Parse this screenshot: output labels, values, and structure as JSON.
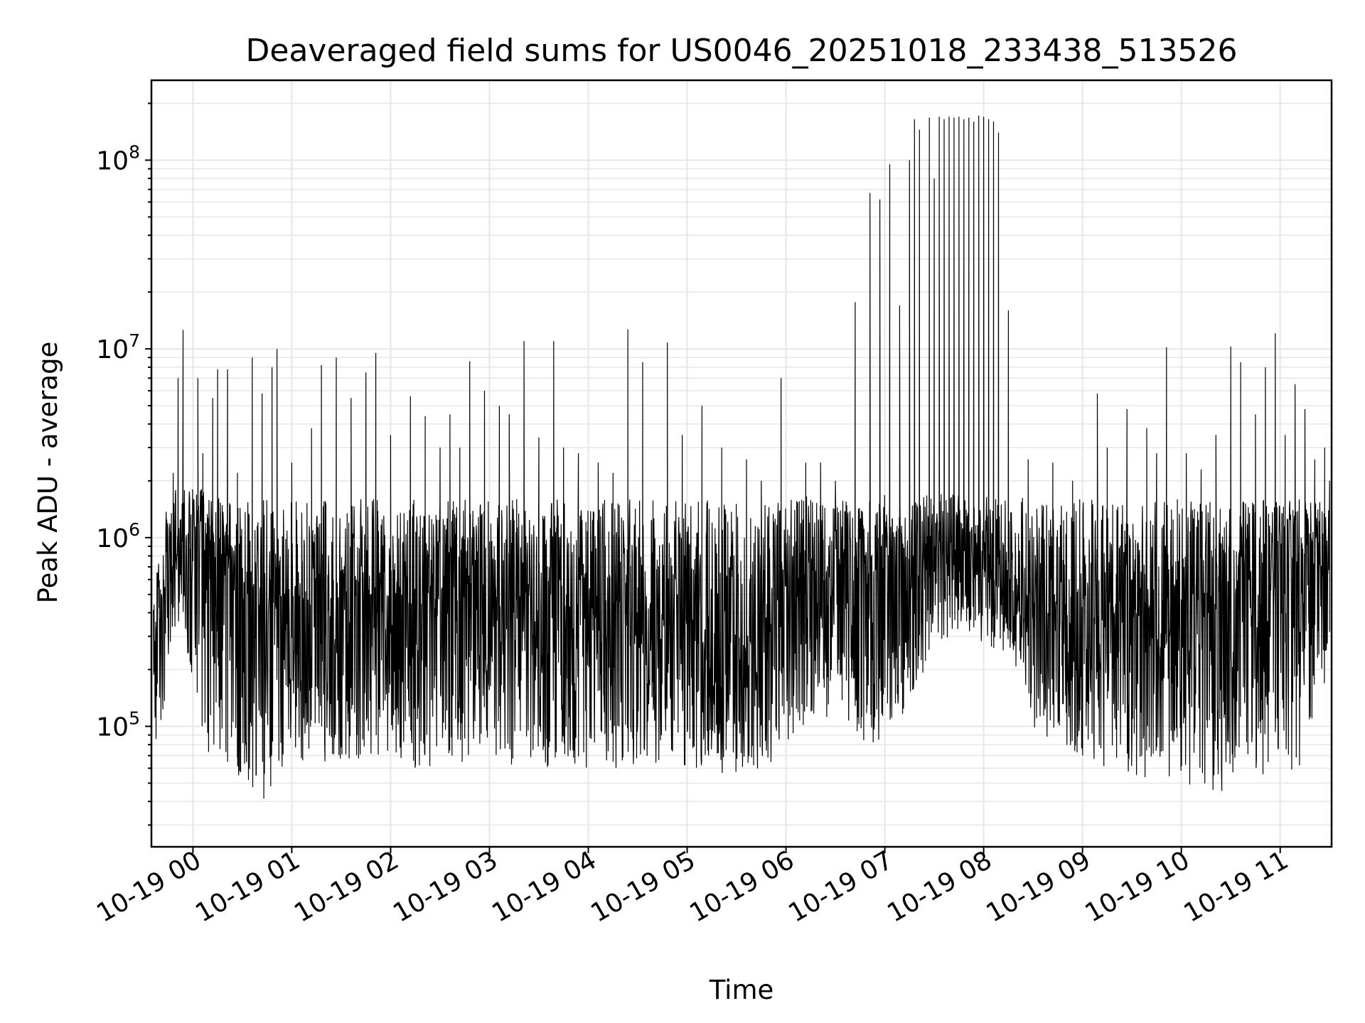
{
  "chart_data": {
    "type": "line",
    "title": "Deaveraged field sums for US0046_20251018_233438_513526",
    "xlabel": "Time",
    "ylabel": "Peak ADU - average",
    "yscale": "log",
    "grid": true,
    "line_color": "#000000",
    "grid_color": "#e6e6e6",
    "x_ticks": [
      "10-19 00",
      "10-19 01",
      "10-19 02",
      "10-19 03",
      "10-19 04",
      "10-19 05",
      "10-19 06",
      "10-19 07",
      "10-19 08",
      "10-19 09",
      "10-19 10",
      "10-19 11"
    ],
    "y_ticks": [
      {
        "base": "10",
        "exp": "5",
        "value": 100000
      },
      {
        "base": "10",
        "exp": "6",
        "value": 1000000
      },
      {
        "base": "10",
        "exp": "7",
        "value": 10000000
      },
      {
        "base": "10",
        "exp": "8",
        "value": 100000000
      }
    ],
    "xlim_hours": [
      -0.42,
      11.52
    ],
    "ylim": [
      23000,
      265000000
    ],
    "series": [
      {
        "x_hours": [
          -0.4,
          -0.35,
          -0.3,
          -0.25,
          -0.2,
          -0.15,
          -0.1,
          0.0,
          0.1,
          0.2,
          0.3,
          0.4,
          0.5,
          0.6,
          0.7,
          0.8,
          0.9,
          1.0,
          1.25,
          1.5,
          1.75,
          2.0,
          2.25,
          2.5,
          2.75,
          3.0,
          3.25,
          3.5,
          3.75,
          4.0,
          4.25,
          4.5,
          4.75,
          5.0,
          5.25,
          5.5,
          5.75,
          5.9,
          6.0,
          6.1,
          6.2,
          6.3,
          6.4,
          6.5,
          6.6,
          6.7,
          6.8,
          6.9,
          7.0,
          7.1,
          7.2,
          7.3,
          7.4,
          7.5,
          7.6,
          7.7,
          7.8,
          7.9,
          8.0,
          8.1,
          8.2,
          8.3,
          8.5,
          8.75,
          9.0,
          9.25,
          9.5,
          9.75,
          10.0,
          10.25,
          10.5,
          10.75,
          11.0,
          11.25,
          11.4,
          11.5
        ],
        "y_median": [
          250000,
          350000,
          500000,
          700000,
          850000,
          900000,
          950000,
          1000000,
          1100000,
          900000,
          800000,
          600000,
          500000,
          450000,
          420000,
          400000,
          420000,
          450000,
          450000,
          430000,
          460000,
          480000,
          460000,
          450000,
          470000,
          480000,
          450000,
          420000,
          400000,
          420000,
          410000,
          380000,
          350000,
          330000,
          300000,
          280000,
          250000,
          240000,
          450000,
          500000,
          550000,
          600000,
          650000,
          700000,
          750000,
          700000,
          650000,
          700000,
          750000,
          800000,
          850000,
          880000,
          900000,
          900000,
          880000,
          850000,
          800000,
          750000,
          700000,
          650000,
          600000,
          550000,
          400000,
          380000,
          400000,
          420000,
          430000,
          440000,
          450000,
          460000,
          450000,
          460000,
          700000,
          800000,
          900000,
          500000
        ],
        "y_low": [
          70000,
          80000,
          110000,
          200000,
          300000,
          350000,
          250000,
          150000,
          80000,
          60000,
          55000,
          55000,
          50000,
          45000,
          40000,
          45000,
          55000,
          60000,
          65000,
          60000,
          70000,
          70000,
          60000,
          60000,
          65000,
          65000,
          60000,
          60000,
          60000,
          60000,
          60000,
          60000,
          60000,
          55000,
          55000,
          55000,
          60000,
          65000,
          80000,
          90000,
          100000,
          100000,
          100000,
          100000,
          90000,
          80000,
          70000,
          80000,
          90000,
          100000,
          120000,
          150000,
          200000,
          250000,
          280000,
          300000,
          300000,
          290000,
          280000,
          260000,
          250000,
          230000,
          100000,
          80000,
          70000,
          60000,
          55000,
          50000,
          45000,
          45000,
          45000,
          50000,
          55000,
          60000,
          200000,
          100000
        ],
        "y_high": [
          450000,
          800000,
          1300000,
          1600000,
          1800000,
          1900000,
          1900000,
          1900000,
          1800000,
          1700000,
          1600000,
          1600000,
          1600000,
          1600000,
          1600000,
          1600000,
          1600000,
          1600000,
          1600000,
          1600000,
          1600000,
          1600000,
          1600000,
          1600000,
          1600000,
          1600000,
          1600000,
          1600000,
          1600000,
          1600000,
          1600000,
          1600000,
          1600000,
          1600000,
          1600000,
          1600000,
          1600000,
          1600000,
          1600000,
          1600000,
          1700000,
          1700000,
          1700000,
          1700000,
          1700000,
          1700000,
          1700000,
          1700000,
          1700000,
          1700000,
          1700000,
          1700000,
          1700000,
          1700000,
          1700000,
          1700000,
          1700000,
          1700000,
          1700000,
          1700000,
          1700000,
          1700000,
          1600000,
          1600000,
          1600000,
          1600000,
          1600000,
          1600000,
          1600000,
          1600000,
          1600000,
          1600000,
          1600000,
          1600000,
          1600000,
          1600000
        ],
        "spikes": [
          [
            -0.2,
            2200000
          ],
          [
            -0.15,
            7000000
          ],
          [
            -0.1,
            12600000
          ],
          [
            0.05,
            7000000
          ],
          [
            0.1,
            2800000
          ],
          [
            0.2,
            5500000
          ],
          [
            0.25,
            7800000
          ],
          [
            0.35,
            7800000
          ],
          [
            0.45,
            2200000
          ],
          [
            0.6,
            9000000
          ],
          [
            0.7,
            5800000
          ],
          [
            0.8,
            8000000
          ],
          [
            0.85,
            10000000
          ],
          [
            1.0,
            2500000
          ],
          [
            1.2,
            3800000
          ],
          [
            1.3,
            8200000
          ],
          [
            1.45,
            9000000
          ],
          [
            1.6,
            5500000
          ],
          [
            1.75,
            7500000
          ],
          [
            1.85,
            9500000
          ],
          [
            2.0,
            3500000
          ],
          [
            2.2,
            5600000
          ],
          [
            2.35,
            4400000
          ],
          [
            2.5,
            3000000
          ],
          [
            2.6,
            4500000
          ],
          [
            2.7,
            3000000
          ],
          [
            2.8,
            8600000
          ],
          [
            2.95,
            6000000
          ],
          [
            3.1,
            5000000
          ],
          [
            3.2,
            4500000
          ],
          [
            3.35,
            11000000
          ],
          [
            3.5,
            3400000
          ],
          [
            3.65,
            11000000
          ],
          [
            3.75,
            3000000
          ],
          [
            3.9,
            2800000
          ],
          [
            4.1,
            2500000
          ],
          [
            4.25,
            2200000
          ],
          [
            4.4,
            12700000
          ],
          [
            4.55,
            8500000
          ],
          [
            4.8,
            10800000
          ],
          [
            4.95,
            3500000
          ],
          [
            5.15,
            5000000
          ],
          [
            5.35,
            3000000
          ],
          [
            5.6,
            2600000
          ],
          [
            5.75,
            2000000
          ],
          [
            5.95,
            7000000
          ],
          [
            6.2,
            2500000
          ],
          [
            6.35,
            2500000
          ],
          [
            6.5,
            2000000
          ],
          [
            6.7,
            17700000
          ],
          [
            6.85,
            67000000
          ],
          [
            6.95,
            62000000
          ],
          [
            7.05,
            95000000
          ],
          [
            7.15,
            17000000
          ],
          [
            7.25,
            100000000
          ],
          [
            7.3,
            165000000
          ],
          [
            7.35,
            145000000
          ],
          [
            7.45,
            168000000
          ],
          [
            7.5,
            80000000
          ],
          [
            7.55,
            170000000
          ],
          [
            7.6,
            165000000
          ],
          [
            7.65,
            170000000
          ],
          [
            7.7,
            168000000
          ],
          [
            7.75,
            170000000
          ],
          [
            7.8,
            165000000
          ],
          [
            7.85,
            168000000
          ],
          [
            7.9,
            160000000
          ],
          [
            7.95,
            172000000
          ],
          [
            8.0,
            170000000
          ],
          [
            8.05,
            165000000
          ],
          [
            8.1,
            160000000
          ],
          [
            8.15,
            140000000
          ],
          [
            8.25,
            16000000
          ],
          [
            8.45,
            2600000
          ],
          [
            8.7,
            2500000
          ],
          [
            8.9,
            2000000
          ],
          [
            9.15,
            5800000
          ],
          [
            9.25,
            3000000
          ],
          [
            9.45,
            4800000
          ],
          [
            9.65,
            3800000
          ],
          [
            9.75,
            2800000
          ],
          [
            9.85,
            10200000
          ],
          [
            10.05,
            2800000
          ],
          [
            10.2,
            2300000
          ],
          [
            10.35,
            3500000
          ],
          [
            10.5,
            10300000
          ],
          [
            10.6,
            8500000
          ],
          [
            10.75,
            4500000
          ],
          [
            10.85,
            8000000
          ],
          [
            10.95,
            12100000
          ],
          [
            11.05,
            3500000
          ],
          [
            11.15,
            6500000
          ],
          [
            11.25,
            4800000
          ],
          [
            11.35,
            2600000
          ],
          [
            11.45,
            3000000
          ],
          [
            11.5,
            2000000
          ]
        ]
      }
    ]
  }
}
